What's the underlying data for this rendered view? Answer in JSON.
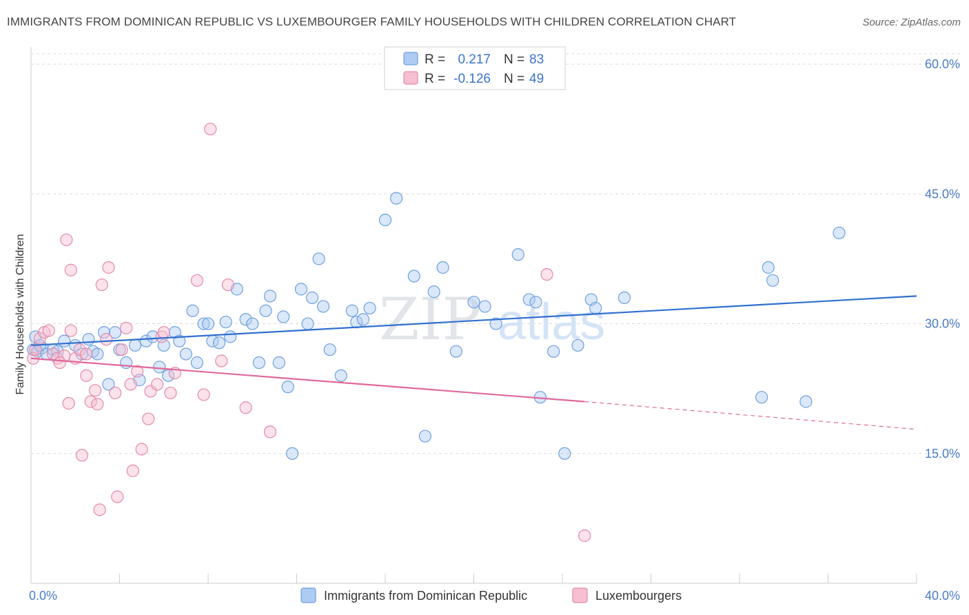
{
  "header": {
    "title": "IMMIGRANTS FROM DOMINICAN REPUBLIC VS LUXEMBOURGER FAMILY HOUSEHOLDS WITH CHILDREN CORRELATION CHART",
    "source": "Source: ZipAtlas.com"
  },
  "watermark": {
    "zip": "ZIP",
    "atlas": "atlas"
  },
  "colors": {
    "blue_fill": "#aecbf3",
    "blue_stroke": "#6f9fdc",
    "blue_line": "#2f6fcf",
    "pink_fill": "#f7bfd2",
    "pink_stroke": "#e38aa9",
    "pink_line": "#e0689a",
    "value_text": "#3a73c9",
    "grid": "#d9d9d9"
  },
  "legend": {
    "r_label": "R =",
    "n_label": "N =",
    "rows": [
      {
        "r": "0.217",
        "n": "83"
      },
      {
        "r": "-0.126",
        "n": "49"
      }
    ]
  },
  "chart_data": {
    "type": "scatter",
    "title": "IMMIGRANTS FROM DOMINICAN REPUBLIC VS LUXEMBOURGER FAMILY HOUSEHOLDS WITH CHILDREN CORRELATION CHART",
    "xlabel": "",
    "ylabel": "Family Households with Children",
    "xlim": [
      0,
      40
    ],
    "ylim": [
      0,
      62
    ],
    "x_tick_labels": {
      "min": "0.0%",
      "max": "40.0%"
    },
    "y_ticks": [
      {
        "value": 60,
        "label": "60.0%"
      },
      {
        "value": 45,
        "label": "45.0%"
      },
      {
        "value": 30,
        "label": "30.0%"
      },
      {
        "value": 15,
        "label": "15.0%"
      }
    ],
    "grid": true,
    "legend_placement": "top-center",
    "series": [
      {
        "name": "Immigrants from Dominican Republic",
        "r": 0.217,
        "n": 83,
        "trend": {
          "x0": 0,
          "y0": 27.5,
          "x1": 40,
          "y1": 33.2
        },
        "points": [
          [
            0.1,
            27.0
          ],
          [
            0.2,
            28.5
          ],
          [
            0.3,
            26.8
          ],
          [
            0.5,
            27.2
          ],
          [
            0.7,
            26.5
          ],
          [
            1.0,
            27.0
          ],
          [
            1.5,
            28.0
          ],
          [
            2.0,
            27.5
          ],
          [
            2.3,
            26.5
          ],
          [
            2.8,
            26.8
          ],
          [
            3.0,
            26.5
          ],
          [
            3.3,
            29.0
          ],
          [
            3.5,
            23.0
          ],
          [
            3.8,
            29.0
          ],
          [
            4.0,
            27.0
          ],
          [
            4.3,
            25.5
          ],
          [
            4.7,
            27.5
          ],
          [
            4.9,
            23.5
          ],
          [
            5.2,
            28.0
          ],
          [
            5.5,
            28.5
          ],
          [
            5.8,
            25.0
          ],
          [
            6.0,
            27.5
          ],
          [
            6.2,
            24.0
          ],
          [
            6.5,
            29.0
          ],
          [
            6.7,
            28.0
          ],
          [
            7.0,
            26.5
          ],
          [
            7.3,
            31.5
          ],
          [
            7.5,
            25.5
          ],
          [
            7.8,
            30.0
          ],
          [
            8.0,
            30.0
          ],
          [
            8.2,
            28.0
          ],
          [
            8.5,
            27.8
          ],
          [
            8.8,
            30.2
          ],
          [
            9.0,
            28.5
          ],
          [
            9.3,
            34.0
          ],
          [
            9.7,
            30.5
          ],
          [
            10.0,
            30.0
          ],
          [
            10.3,
            25.5
          ],
          [
            10.6,
            31.5
          ],
          [
            10.8,
            33.2
          ],
          [
            11.2,
            25.5
          ],
          [
            11.4,
            30.8
          ],
          [
            11.6,
            22.7
          ],
          [
            11.8,
            15.0
          ],
          [
            12.2,
            34.0
          ],
          [
            12.5,
            30.0
          ],
          [
            12.7,
            33.0
          ],
          [
            13.0,
            37.5
          ],
          [
            13.2,
            32.0
          ],
          [
            13.5,
            27.0
          ],
          [
            14.0,
            24.0
          ],
          [
            14.5,
            31.5
          ],
          [
            14.7,
            30.2
          ],
          [
            15.0,
            30.5
          ],
          [
            15.3,
            31.8
          ],
          [
            16.0,
            42.0
          ],
          [
            16.5,
            44.5
          ],
          [
            17.3,
            35.5
          ],
          [
            17.8,
            17.0
          ],
          [
            18.2,
            33.7
          ],
          [
            18.6,
            36.5
          ],
          [
            19.2,
            26.8
          ],
          [
            20.0,
            32.5
          ],
          [
            20.5,
            32.0
          ],
          [
            21.0,
            30.0
          ],
          [
            22.0,
            38.0
          ],
          [
            22.5,
            32.8
          ],
          [
            22.8,
            32.5
          ],
          [
            23.0,
            21.5
          ],
          [
            23.6,
            26.8
          ],
          [
            24.1,
            15.0
          ],
          [
            24.7,
            27.5
          ],
          [
            25.3,
            32.8
          ],
          [
            25.5,
            31.8
          ],
          [
            26.8,
            33.0
          ],
          [
            33.0,
            21.5
          ],
          [
            33.3,
            36.5
          ],
          [
            33.5,
            35.0
          ],
          [
            35.0,
            21.0
          ],
          [
            36.5,
            40.5
          ],
          [
            0.4,
            27.5
          ],
          [
            1.2,
            26.8
          ],
          [
            2.6,
            28.2
          ]
        ]
      },
      {
        "name": "Luxembourgers",
        "r": -0.126,
        "n": 49,
        "trend": {
          "x0": 0,
          "y0": 26.0,
          "x1": 25,
          "y1": 21.0,
          "dash_x1": 40,
          "dash_y1": 17.8
        },
        "points": [
          [
            0.1,
            26.0
          ],
          [
            0.2,
            27.0
          ],
          [
            0.4,
            28.3
          ],
          [
            0.6,
            29.0
          ],
          [
            0.8,
            29.2
          ],
          [
            1.0,
            26.5
          ],
          [
            1.2,
            26.0
          ],
          [
            1.5,
            26.3
          ],
          [
            1.7,
            20.8
          ],
          [
            1.6,
            39.7
          ],
          [
            1.8,
            29.2
          ],
          [
            1.8,
            36.2
          ],
          [
            2.0,
            26.0
          ],
          [
            2.2,
            27.0
          ],
          [
            2.3,
            14.8
          ],
          [
            2.5,
            24.0
          ],
          [
            2.7,
            21.0
          ],
          [
            2.9,
            22.3
          ],
          [
            3.0,
            20.7
          ],
          [
            3.2,
            34.5
          ],
          [
            3.4,
            28.2
          ],
          [
            3.5,
            36.5
          ],
          [
            3.8,
            22.0
          ],
          [
            3.9,
            10.0
          ],
          [
            4.1,
            27.0
          ],
          [
            4.3,
            29.5
          ],
          [
            4.5,
            23.0
          ],
          [
            4.6,
            13.0
          ],
          [
            4.8,
            24.5
          ],
          [
            5.0,
            15.5
          ],
          [
            5.3,
            19.0
          ],
          [
            5.4,
            22.2
          ],
          [
            5.7,
            23.0
          ],
          [
            5.9,
            28.5
          ],
          [
            6.0,
            29.0
          ],
          [
            6.3,
            22.0
          ],
          [
            6.5,
            24.3
          ],
          [
            7.5,
            35.0
          ],
          [
            7.8,
            21.8
          ],
          [
            8.1,
            52.5
          ],
          [
            8.6,
            25.7
          ],
          [
            8.9,
            34.5
          ],
          [
            9.7,
            20.3
          ],
          [
            10.8,
            17.5
          ],
          [
            3.1,
            8.5
          ],
          [
            2.5,
            26.5
          ],
          [
            1.3,
            25.5
          ],
          [
            23.3,
            35.7
          ],
          [
            25.0,
            5.5
          ]
        ]
      }
    ],
    "bottom_legend": [
      "Immigrants from Dominican Republic",
      "Luxembourgers"
    ]
  }
}
